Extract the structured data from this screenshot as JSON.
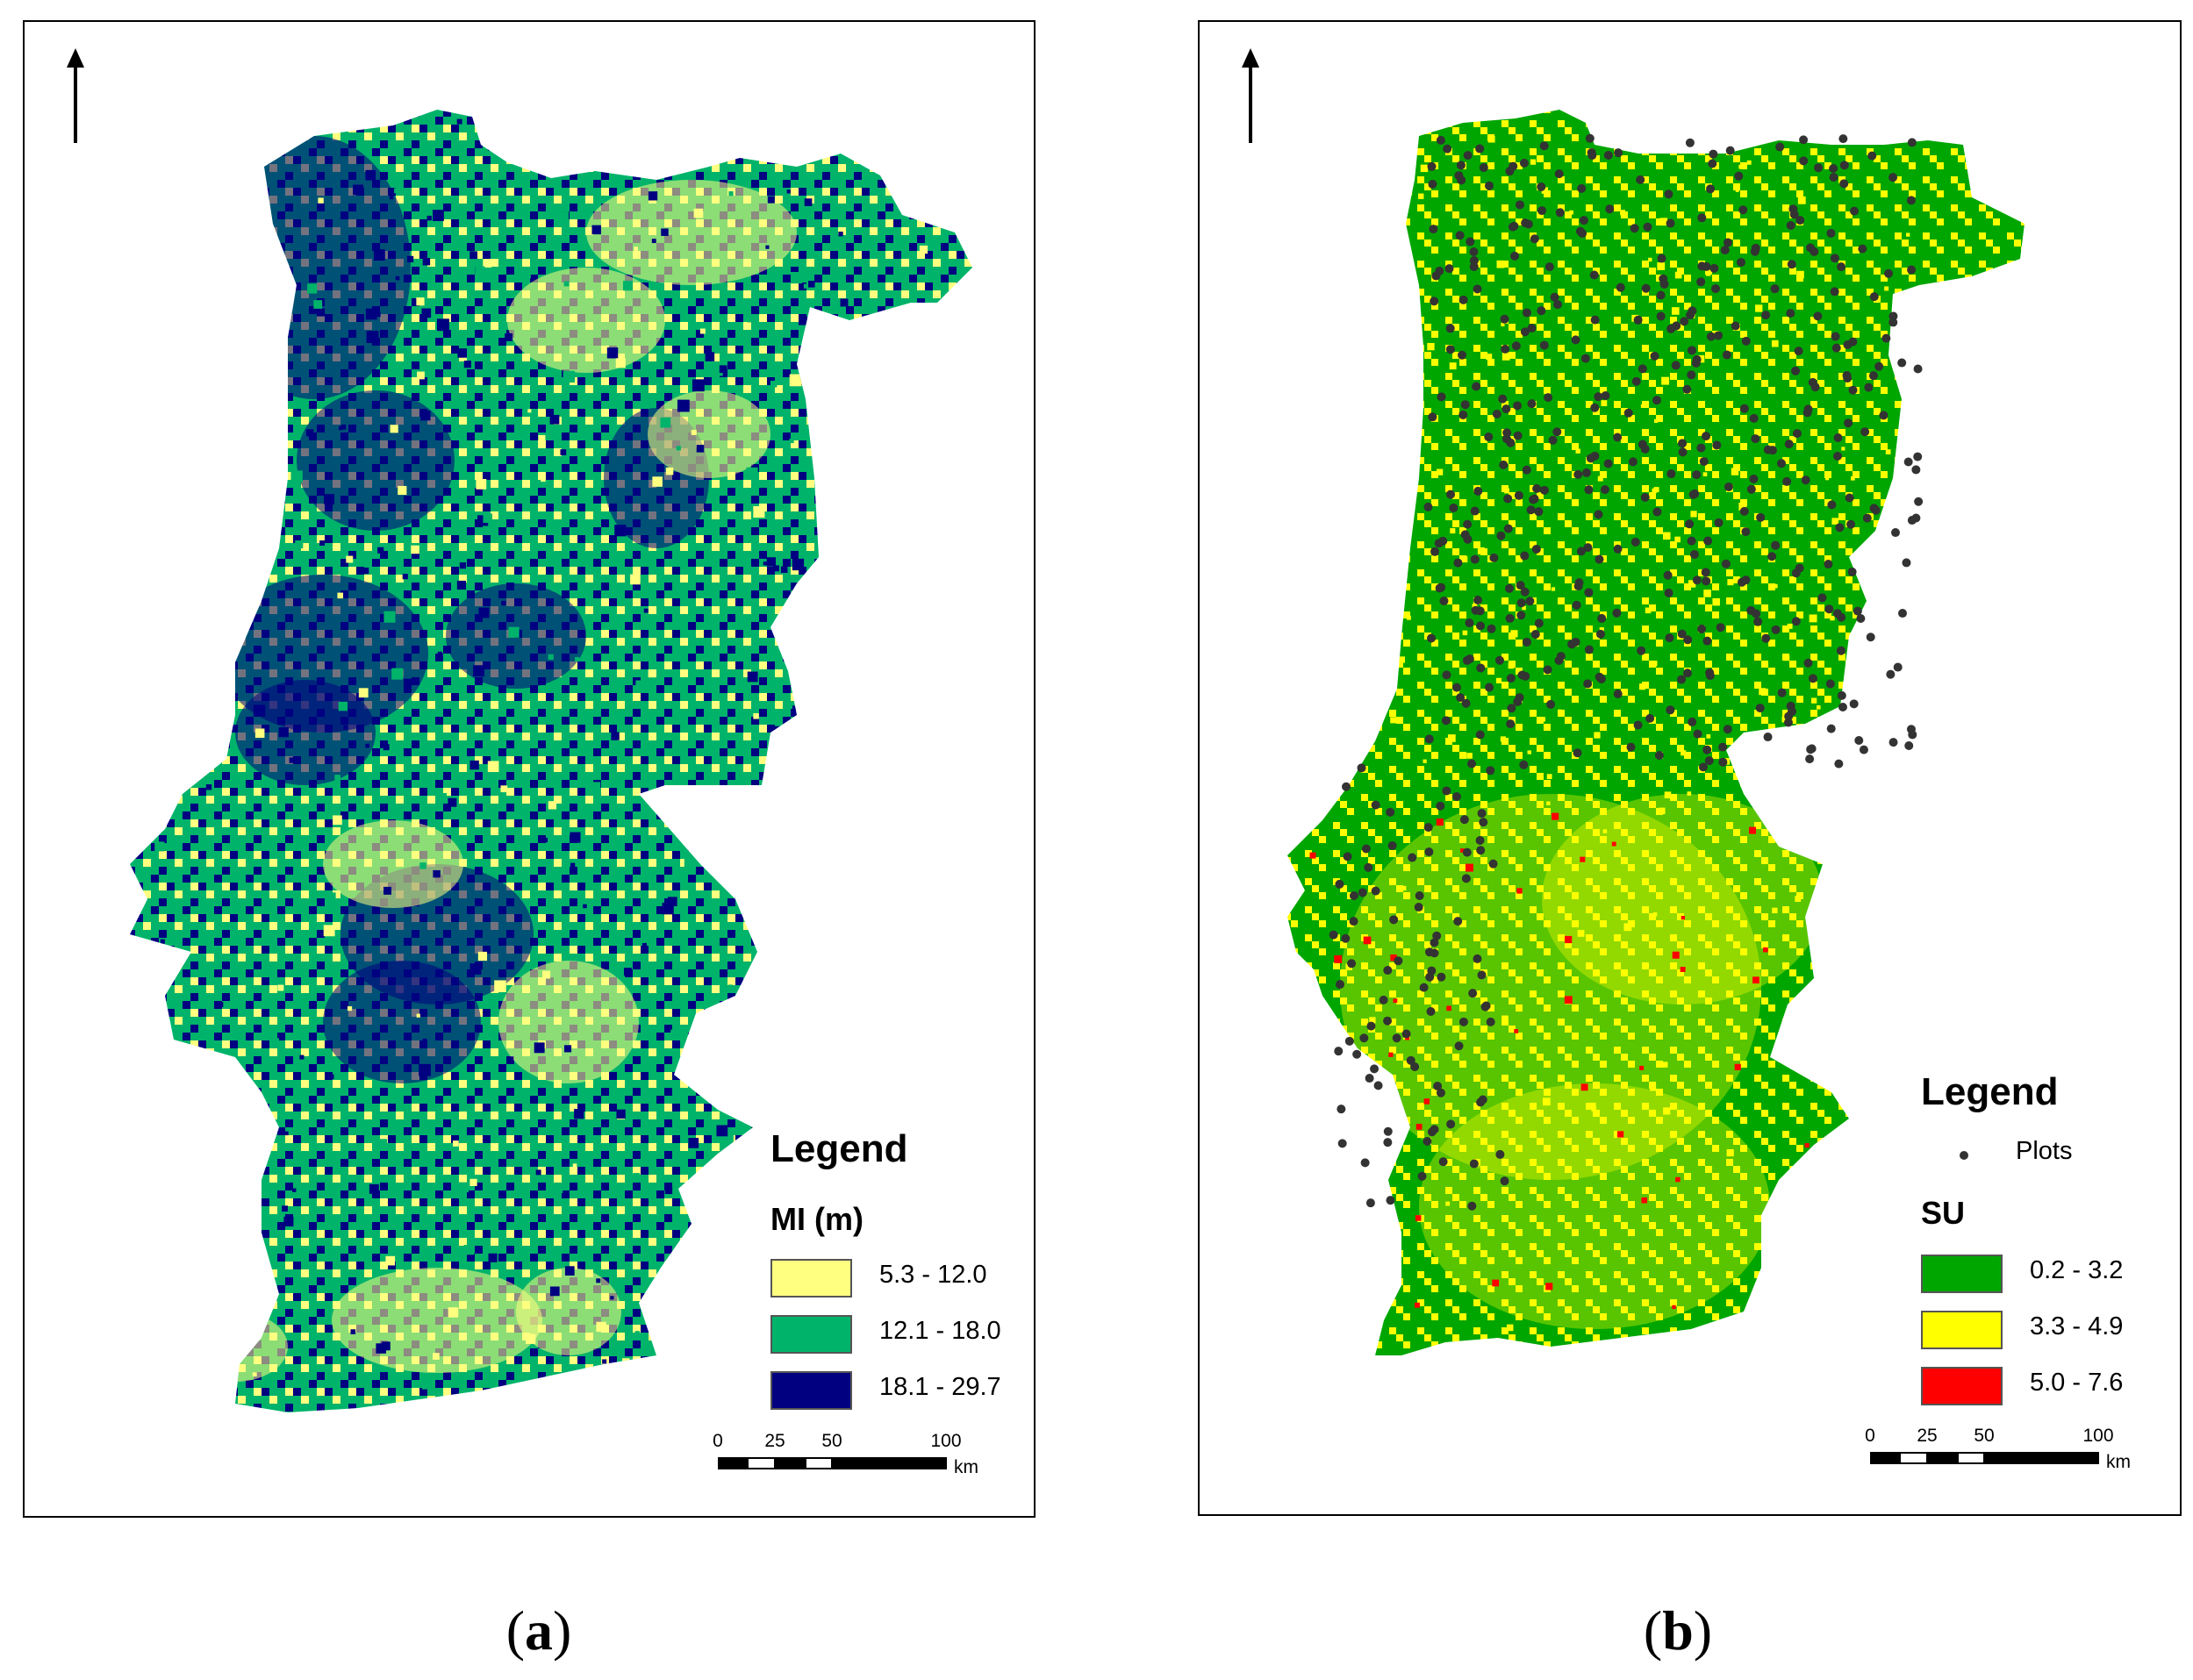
{
  "panels": [
    {
      "id": "a",
      "caption_open": "(",
      "caption_letter": "a",
      "caption_close": ")",
      "legend_title": "Legend",
      "variable_label": "MI (m)",
      "classes": [
        {
          "label": "5.3 - 12.0",
          "color": "#ffff80"
        },
        {
          "label": "12.1 - 18.0",
          "color": "#00b36a"
        },
        {
          "label": "18.1 - 29.7",
          "color": "#000080"
        }
      ],
      "scale": {
        "ticks": [
          "0",
          "25",
          "50",
          "100"
        ],
        "unit": "km"
      }
    },
    {
      "id": "b",
      "caption_open": "(",
      "caption_letter": "b",
      "caption_close": ")",
      "legend_title": "Legend",
      "point_label": "Plots",
      "variable_label": "SU",
      "classes": [
        {
          "label": "0.2 - 3.2",
          "color": "#00a600"
        },
        {
          "label": "3.3 - 4.9",
          "color": "#ffff00"
        },
        {
          "label": "5.0 - 7.6",
          "color": "#ff0000"
        }
      ],
      "scale": {
        "ticks": [
          "0",
          "25",
          "50",
          "100"
        ],
        "unit": "km"
      }
    }
  ]
}
